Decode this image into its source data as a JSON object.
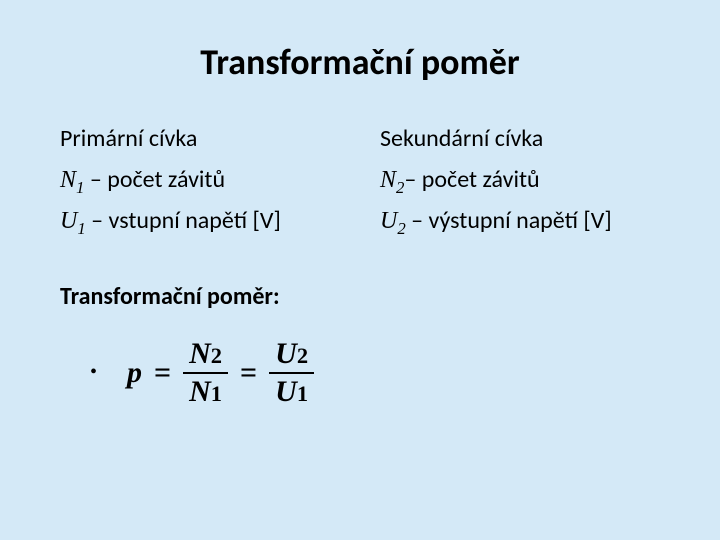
{
  "title": "Transformační poměr",
  "left": {
    "header": "Primární cívka",
    "n_sym": "N",
    "n_sub": "1",
    "n_desc": " – počet závitů",
    "u_sym": "U",
    "u_sub": "1",
    "u_desc": " – vstupní napětí [V]"
  },
  "right": {
    "header": "Sekundární cívka",
    "n_sym": "N",
    "n_sub": "2",
    "n_desc": "– počet závitů",
    "u_sym": "U",
    "u_sub": "2",
    "u_desc": " – výstupní napětí [V]"
  },
  "subtitle": "Transformační poměr:",
  "equation": {
    "lhs": "p",
    "frac1_num_sym": "N",
    "frac1_num_sub": "2",
    "frac1_den_sym": "N",
    "frac1_den_sub": "1",
    "frac2_num_sym": "U",
    "frac2_num_sub": "2",
    "frac2_den_sym": "U",
    "frac2_den_sub": "1"
  },
  "colors": {
    "background": "#d4e9f7",
    "text": "#000000"
  }
}
